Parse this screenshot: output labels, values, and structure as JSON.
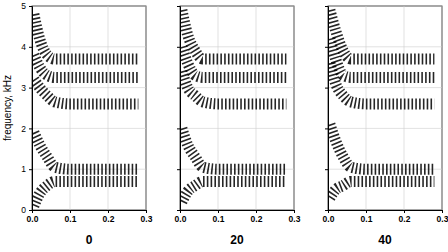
{
  "chart_data": [
    {
      "type": "spectrogram",
      "title": "0",
      "ylabel": "frequency, kHz",
      "x": [
        0.005,
        0.02,
        0.04,
        0.06,
        0.1,
        0.2,
        0.28
      ],
      "series": [
        {
          "values": [
            0.1,
            0.4,
            0.6,
            0.7,
            0.7,
            0.7,
            0.7
          ]
        },
        {
          "values": [
            1.9,
            1.6,
            1.3,
            1.05,
            1.0,
            1.0,
            1.0
          ]
        },
        {
          "values": [
            3.2,
            3.0,
            2.8,
            2.65,
            2.6,
            2.6,
            2.6
          ]
        },
        {
          "values": [
            3.8,
            3.5,
            3.3,
            3.25,
            3.25,
            3.25,
            3.25
          ]
        },
        {
          "values": [
            4.8,
            4.2,
            3.8,
            3.7,
            3.7,
            3.7,
            3.7
          ]
        }
      ],
      "color": "#000000",
      "xlim": [
        0,
        0.3
      ],
      "ylim": [
        0,
        5
      ],
      "xticks": [
        {
          "value": 0,
          "label": "0.0"
        },
        {
          "value": 0.1,
          "label": "0.1"
        },
        {
          "value": 0.2,
          "label": "0.2"
        },
        {
          "value": 0.3,
          "label": "0.3"
        }
      ],
      "yticks": [
        0,
        1,
        2,
        3,
        4,
        5
      ],
      "grid": true
    },
    {
      "type": "spectrogram",
      "title": "20",
      "x": [
        0.005,
        0.02,
        0.04,
        0.06,
        0.1,
        0.2,
        0.28
      ],
      "series": [
        {
          "values": [
            0.2,
            0.45,
            0.6,
            0.7,
            0.7,
            0.7,
            0.7
          ]
        },
        {
          "values": [
            2.0,
            1.6,
            1.3,
            1.05,
            1.0,
            1.0,
            1.0
          ]
        },
        {
          "values": [
            3.4,
            3.0,
            2.8,
            2.65,
            2.6,
            2.6,
            2.6
          ]
        },
        {
          "values": [
            4.0,
            3.6,
            3.3,
            3.25,
            3.25,
            3.25,
            3.25
          ]
        },
        {
          "values": [
            4.9,
            4.3,
            3.9,
            3.7,
            3.7,
            3.7,
            3.7
          ]
        }
      ],
      "color": "#000000",
      "xlim": [
        0,
        0.3
      ],
      "ylim": [
        0,
        5
      ],
      "xticks": [
        {
          "value": 0,
          "label": "0.0"
        },
        {
          "value": 0.1,
          "label": "0.1"
        },
        {
          "value": 0.2,
          "label": "0.2"
        },
        {
          "value": 0.3,
          "label": "0.3"
        }
      ],
      "yticks": [
        0,
        1,
        2,
        3,
        4,
        5
      ],
      "tick_labels": "x",
      "grid": true
    },
    {
      "type": "spectrogram",
      "title": "40",
      "x": [
        0.005,
        0.02,
        0.04,
        0.06,
        0.1,
        0.2,
        0.28
      ],
      "series": [
        {
          "values": [
            0.3,
            0.5,
            0.6,
            0.7,
            0.7,
            0.7,
            0.7
          ]
        },
        {
          "values": [
            2.1,
            1.7,
            1.3,
            1.05,
            1.0,
            1.0,
            1.0
          ]
        },
        {
          "values": [
            3.6,
            3.1,
            2.8,
            2.65,
            2.6,
            2.6,
            2.6
          ]
        },
        {
          "values": [
            4.2,
            3.7,
            3.3,
            3.25,
            3.25,
            3.25,
            3.25
          ]
        },
        {
          "values": [
            4.9,
            4.4,
            3.9,
            3.7,
            3.7,
            3.7,
            3.7
          ]
        }
      ],
      "color": "#000000",
      "xlim": [
        0,
        0.3
      ],
      "ylim": [
        0,
        5
      ],
      "xticks": [
        {
          "value": 0,
          "label": "0.0"
        },
        {
          "value": 0.1,
          "label": "0.1"
        },
        {
          "value": 0.2,
          "label": "0.2"
        },
        {
          "value": 0.3,
          "label": "0.3"
        }
      ],
      "yticks": [
        0,
        1,
        2,
        3,
        4,
        5
      ],
      "tick_labels": "x",
      "grid": true
    }
  ]
}
